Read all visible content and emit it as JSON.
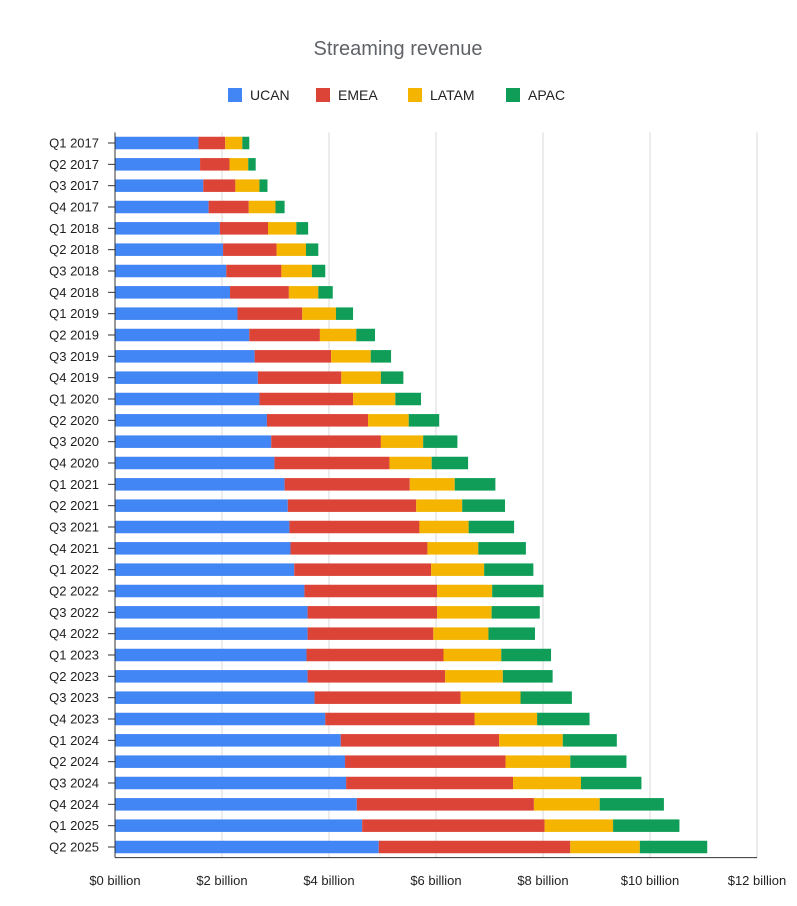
{
  "chart_data": {
    "type": "bar",
    "orientation": "horizontal",
    "stacked": true,
    "title": "Streaming revenue",
    "legend_position": "top",
    "grid": true,
    "xlim": [
      0,
      12
    ],
    "x_ticks": [
      "$0 billion",
      "$2 billion",
      "$4 billion",
      "$6 billion",
      "$8 billion",
      "$10 billion",
      "$12 billion"
    ],
    "categories": [
      "Q1 2017",
      "Q2 2017",
      "Q3 2017",
      "Q4 2017",
      "Q1 2018",
      "Q2 2018",
      "Q3 2018",
      "Q4 2018",
      "Q1 2019",
      "Q2 2019",
      "Q3 2019",
      "Q4 2019",
      "Q1 2020",
      "Q2 2020",
      "Q3 2020",
      "Q4 2020",
      "Q1 2021",
      "Q2 2021",
      "Q3 2021",
      "Q4 2021",
      "Q1 2022",
      "Q2 2022",
      "Q3 2022",
      "Q4 2022",
      "Q1 2023",
      "Q2 2023",
      "Q3 2023",
      "Q4 2023",
      "Q1 2024",
      "Q2 2024",
      "Q3 2024",
      "Q4 2024",
      "Q1 2025",
      "Q2 2025"
    ],
    "series": [
      {
        "name": "UCAN",
        "color": "#4285f4",
        "values": [
          1.56,
          1.59,
          1.65,
          1.75,
          1.96,
          2.02,
          2.08,
          2.15,
          2.29,
          2.51,
          2.61,
          2.67,
          2.7,
          2.84,
          2.92,
          2.98,
          3.17,
          3.23,
          3.26,
          3.28,
          3.35,
          3.54,
          3.6,
          3.6,
          3.58,
          3.6,
          3.73,
          3.93,
          4.22,
          4.3,
          4.32,
          4.52,
          4.62,
          4.93
        ]
      },
      {
        "name": "EMEA",
        "color": "#db4437",
        "values": [
          0.5,
          0.55,
          0.6,
          0.75,
          0.9,
          1.0,
          1.03,
          1.1,
          1.21,
          1.32,
          1.43,
          1.56,
          1.75,
          1.89,
          2.05,
          2.15,
          2.34,
          2.4,
          2.43,
          2.56,
          2.56,
          2.48,
          2.42,
          2.35,
          2.56,
          2.57,
          2.73,
          2.79,
          2.96,
          3.0,
          3.12,
          3.31,
          3.41,
          3.58
        ]
      },
      {
        "name": "LATAM",
        "color": "#f4b400",
        "values": [
          0.32,
          0.35,
          0.45,
          0.5,
          0.53,
          0.55,
          0.57,
          0.55,
          0.63,
          0.68,
          0.74,
          0.74,
          0.79,
          0.76,
          0.79,
          0.79,
          0.84,
          0.86,
          0.92,
          0.95,
          0.99,
          1.03,
          1.02,
          1.03,
          1.08,
          1.08,
          1.12,
          1.17,
          1.19,
          1.21,
          1.27,
          1.23,
          1.28,
          1.3
        ]
      },
      {
        "name": "APAC",
        "color": "#0f9d58",
        "values": [
          0.13,
          0.14,
          0.15,
          0.17,
          0.22,
          0.23,
          0.25,
          0.27,
          0.32,
          0.35,
          0.38,
          0.42,
          0.48,
          0.57,
          0.64,
          0.68,
          0.76,
          0.8,
          0.85,
          0.89,
          0.92,
          0.96,
          0.9,
          0.87,
          0.93,
          0.93,
          0.96,
          0.98,
          1.01,
          1.05,
          1.13,
          1.2,
          1.24,
          1.26
        ]
      }
    ]
  }
}
